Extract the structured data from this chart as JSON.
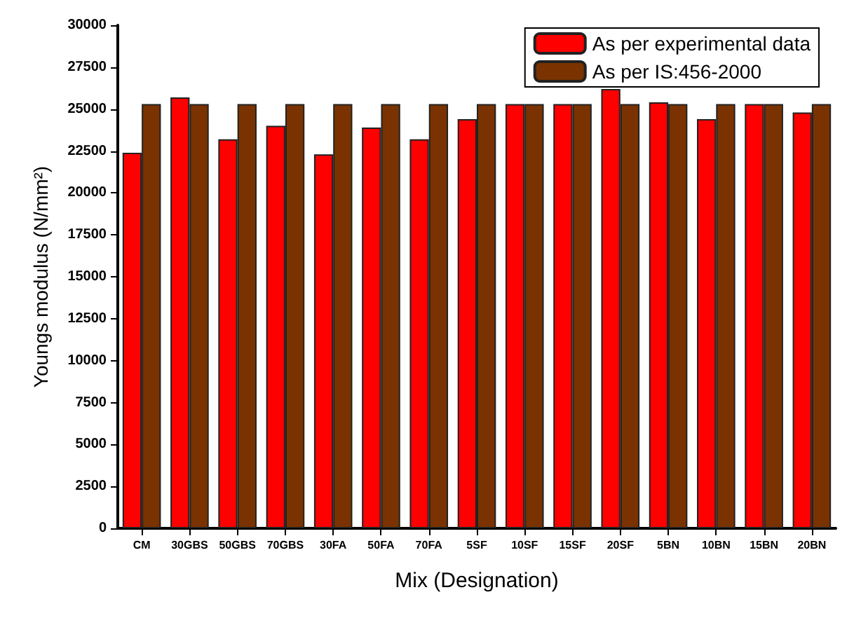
{
  "chart_data": {
    "type": "bar",
    "xlabel": "Mix (Designation)",
    "ylabel": "Youngs modulus (N/mm²)",
    "categories": [
      "CM",
      "30GBS",
      "50GBS",
      "70GBS",
      "30FA",
      "50FA",
      "70FA",
      "5SF",
      "10SF",
      "15SF",
      "20SF",
      "5BN",
      "10BN",
      "15BN",
      "20BN"
    ],
    "series": [
      {
        "name": "As per experimental data",
        "color": "#ff0000",
        "values": [
          22400,
          25700,
          23200,
          24000,
          22300,
          23900,
          23200,
          24400,
          25300,
          25300,
          26200,
          25400,
          24400,
          25300,
          24800
        ]
      },
      {
        "name": "As per IS:456-2000",
        "color": "#7a3300",
        "values": [
          25300,
          25300,
          25300,
          25300,
          25300,
          25300,
          25300,
          25300,
          25300,
          25300,
          25300,
          25300,
          25300,
          25300,
          25300
        ]
      }
    ],
    "ylim": [
      0,
      30000
    ],
    "yticks": [
      0,
      2500,
      5000,
      7500,
      10000,
      12500,
      15000,
      17500,
      20000,
      22500,
      25000,
      27500,
      30000
    ],
    "grid": false,
    "legend": "top right"
  }
}
